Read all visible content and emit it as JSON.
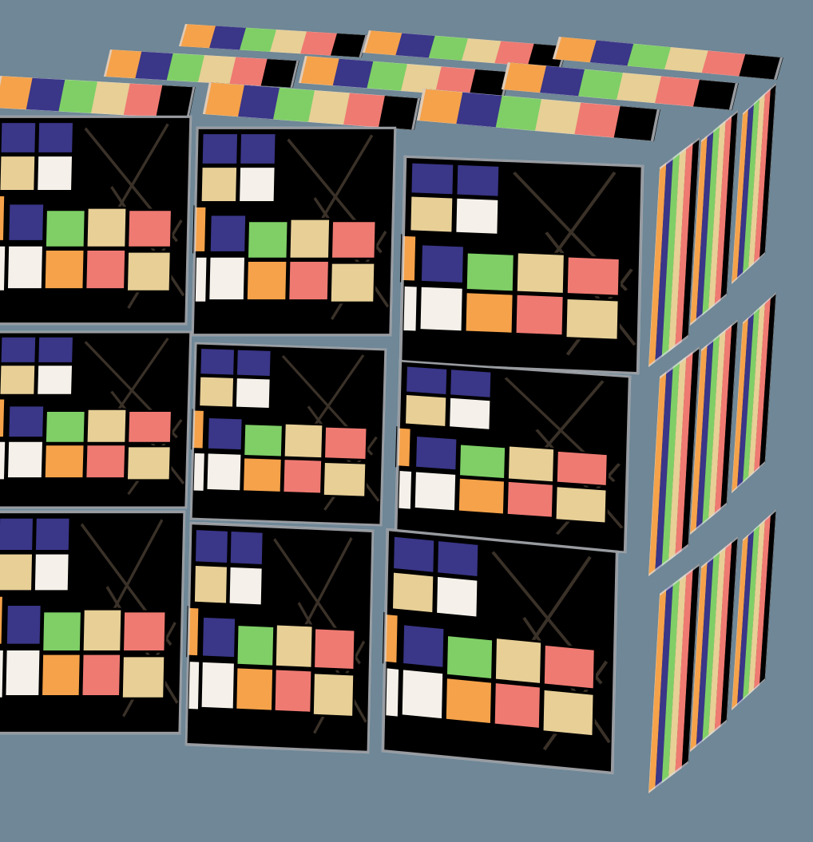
{
  "scene": {
    "background": "#6f8796",
    "grid_size": 3,
    "faces": [
      "front",
      "top",
      "right"
    ]
  },
  "palette": {
    "blue": "#3a3688",
    "white": "#f5f1ea",
    "cream": "#e7cf96",
    "green": "#7fcf66",
    "pink": "#ef7a72",
    "orange": "#f5a24a",
    "black": "#000000",
    "cross": "#3a3128",
    "edge_highlight": "#d9dde4"
  },
  "tile_pattern": {
    "cells": [
      {
        "color": "blue"
      },
      {
        "color": "blue"
      },
      {
        "color": "cream"
      },
      {
        "color": "white"
      },
      {
        "color": "orange"
      },
      {
        "color": "blue"
      },
      {
        "color": "green"
      },
      {
        "color": "cream"
      },
      {
        "color": "pink"
      },
      {
        "color": "white"
      },
      {
        "color": "white"
      },
      {
        "color": "orange"
      },
      {
        "color": "pink"
      },
      {
        "color": "cream"
      }
    ],
    "stripes": [
      "orange",
      "blue",
      "green",
      "cream",
      "pink",
      "black"
    ]
  }
}
